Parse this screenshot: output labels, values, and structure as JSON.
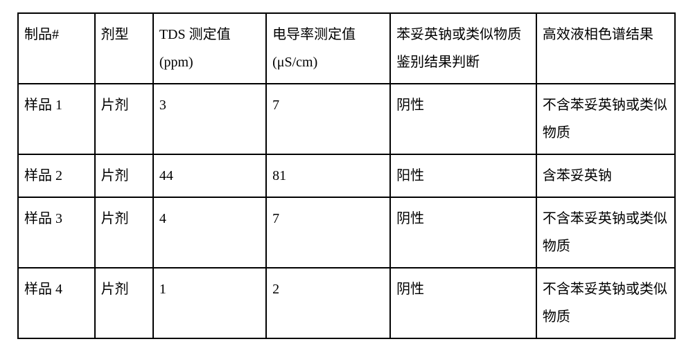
{
  "table": {
    "columns": [
      {
        "label": "制品#",
        "class": "col-0"
      },
      {
        "label": "剂型",
        "class": "col-1"
      },
      {
        "label": "TDS 测定值(ppm)",
        "class": "col-2"
      },
      {
        "label": "电导率测定值(μS/cm)",
        "class": "col-3"
      },
      {
        "label": "苯妥英钠或类似物质鉴别结果判断",
        "class": "col-4"
      },
      {
        "label": "高效液相色谱结果",
        "class": "col-5"
      }
    ],
    "rows": [
      [
        "样品 1",
        "片剂",
        "3",
        "7",
        "阴性",
        "不含苯妥英钠或类似物质"
      ],
      [
        "样品 2",
        "片剂",
        "44",
        "81",
        "阳性",
        "含苯妥英钠"
      ],
      [
        "样品 3",
        "片剂",
        "4",
        "7",
        "阴性",
        "不含苯妥英钠或类似物质"
      ],
      [
        "样品 4",
        "片剂",
        "1",
        "2",
        "阴性",
        "不含苯妥英钠或类似物质"
      ]
    ],
    "styling": {
      "border_color": "#000000",
      "border_width": 2,
      "background_color": "#ffffff",
      "text_color": "#000000",
      "font_family": "SimSun",
      "font_size": 20,
      "line_height": 2.0,
      "col_widths_percent": [
        10.5,
        8,
        15.5,
        17,
        20,
        19
      ],
      "cell_padding": "10px 8px",
      "text_align": "left",
      "vertical_align": "top"
    }
  }
}
